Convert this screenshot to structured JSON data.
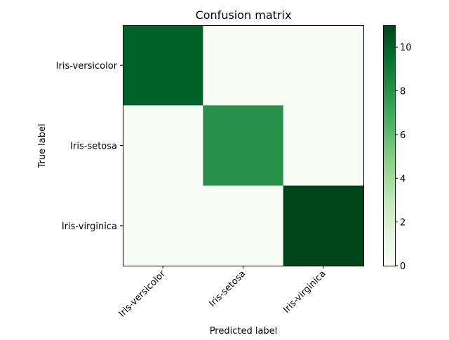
{
  "chart_data": {
    "type": "heatmap",
    "title": "Confusion matrix",
    "xlabel": "Predicted label",
    "ylabel": "True label",
    "x_categories": [
      "Iris-versicolor",
      "Iris-setosa",
      "Iris-virginica"
    ],
    "y_categories": [
      "Iris-versicolor",
      "Iris-setosa",
      "Iris-virginica"
    ],
    "matrix": [
      [
        10,
        0,
        0
      ],
      [
        0,
        8,
        0
      ],
      [
        0,
        0,
        11
      ]
    ],
    "colormap": "Greens",
    "colorbar": {
      "range": [
        0,
        11
      ],
      "ticks": [
        0,
        2,
        4,
        6,
        8,
        10
      ],
      "tick_labels": [
        "0",
        "2",
        "4",
        "6",
        "8",
        "10"
      ]
    },
    "x_tick_rotation_deg": 45,
    "grid": false
  }
}
